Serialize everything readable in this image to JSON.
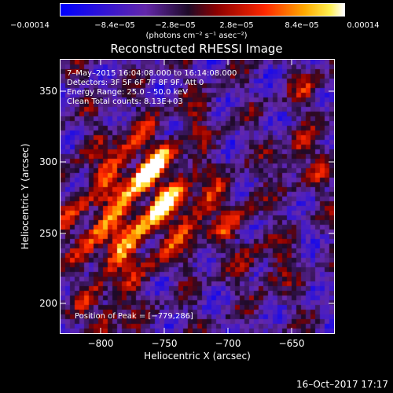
{
  "colorbar": {
    "ticks": [
      "−0.00014",
      "−8.4e−05",
      "−2.8e−05",
      "2.8e−05",
      "8.4e−05",
      "0.00014"
    ],
    "units": "(photons cm⁻² s⁻¹ asec⁻²)"
  },
  "title": "Reconstructed RHESSI Image",
  "info": {
    "time": "7–May–2015 16:04:08.000 to 16:14:08.000",
    "detectors": "Detectors: 3F 5F 6F 7F 8F 9F, Att 0",
    "energy": "Energy Range: 25.0 – 50.0 keV",
    "clean": "Clean    Total counts: 8.13E+03",
    "peak": "Position of Peak = [−779,286]"
  },
  "axes": {
    "xlabel": "Heliocentric X (arcsec)",
    "ylabel": "Heliocentric Y (arcsec)",
    "xticks": [
      "−800",
      "−750",
      "−700",
      "−650"
    ],
    "yticks": [
      "350",
      "300",
      "250",
      "200"
    ]
  },
  "footer": {
    "date": "16–Oct–2017 17:17"
  },
  "colors": {
    "background": "#000000",
    "text": "#ffffff"
  }
}
